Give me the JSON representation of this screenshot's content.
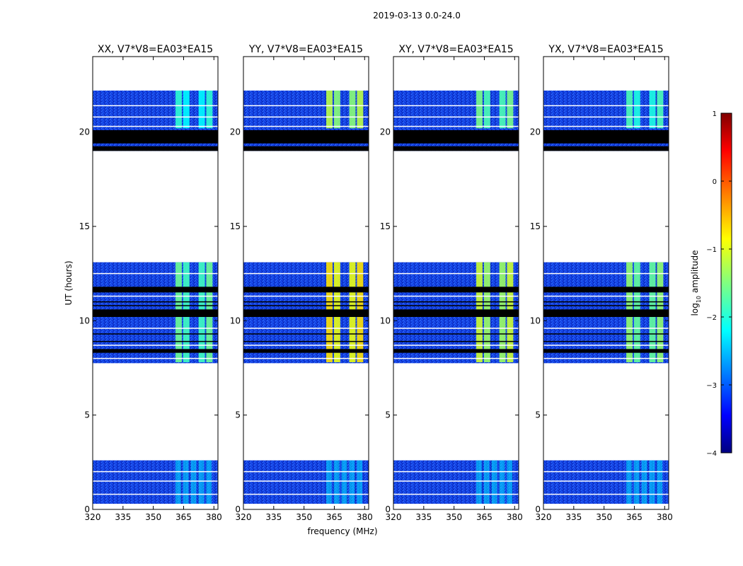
{
  "figure": {
    "suptitle": "2019-03-13 0.0-24.0"
  },
  "chart_data": {
    "type": "heatmap",
    "xlabel": "frequency (MHz)",
    "ylabel": "UT (hours)",
    "xlim": [
      320,
      382
    ],
    "ylim": [
      0,
      24
    ],
    "xticks": [
      320,
      335,
      350,
      365,
      380
    ],
    "xtick_labels": [
      "320",
      "335",
      "350",
      "365",
      "380"
    ],
    "yticks": [
      0,
      5,
      10,
      15,
      20
    ],
    "ytick_labels": [
      "0",
      "5",
      "10",
      "15",
      "20"
    ],
    "data_blocks_hours": [
      [
        0.3,
        2.6
      ],
      [
        7.75,
        13.1
      ],
      [
        19.0,
        22.2
      ]
    ],
    "flagged_rows_hours": [
      [
        19.0,
        19.25
      ],
      [
        19.4,
        20.1
      ],
      [
        10.2,
        10.6
      ],
      [
        11.5,
        11.8
      ],
      [
        8.3,
        8.5
      ]
    ],
    "high_band_MHz": [
      361,
      380
    ],
    "high_band_bright_hours": [
      [
        7.8,
        13.1
      ],
      [
        20.2,
        22.2
      ]
    ],
    "panels": [
      {
        "title": "XX, V7*V8=EA03*EA15",
        "band_intensity": 0.48
      },
      {
        "title": "YY, V7*V8=EA03*EA15",
        "band_intensity": 0.66
      },
      {
        "title": "XY, V7*V8=EA03*EA15",
        "band_intensity": 0.58
      },
      {
        "title": "YX, V7*V8=EA03*EA15",
        "band_intensity": 0.52
      }
    ],
    "colorbar": {
      "label": "log10 amplitude",
      "label_main": "log",
      "label_sub": "10",
      "label_rest": " amplitude",
      "range": [
        -4,
        1
      ],
      "ticks": [
        1,
        0,
        -1,
        -2,
        -3,
        -4
      ],
      "tick_labels": [
        "1",
        "0",
        "−1",
        "−2",
        "−3",
        "−4"
      ],
      "colormap": "jet"
    }
  }
}
